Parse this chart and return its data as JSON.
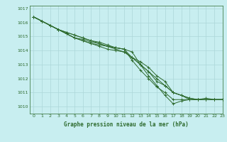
{
  "title": "Graphe pression niveau de la mer (hPa)",
  "bg_color": "#c8eef0",
  "grid_color": "#acd6d8",
  "line_color": "#2d6a2d",
  "text_color": "#2d6a2d",
  "xlim": [
    -0.5,
    23
  ],
  "ylim": [
    1009.5,
    1017.2
  ],
  "yticks": [
    1010,
    1011,
    1012,
    1013,
    1014,
    1015,
    1016,
    1017
  ],
  "xticks": [
    0,
    1,
    2,
    3,
    4,
    5,
    6,
    7,
    8,
    9,
    10,
    11,
    12,
    13,
    14,
    15,
    16,
    17,
    18,
    19,
    20,
    21,
    22,
    23
  ],
  "series": [
    [
      1016.4,
      1016.1,
      1015.8,
      1015.5,
      1015.3,
      1015.1,
      1014.9,
      1014.7,
      1014.6,
      1014.4,
      1014.2,
      1014.1,
      1013.9,
      1013.0,
      1012.2,
      1011.5,
      1010.8,
      1010.2,
      1010.4,
      1010.5,
      1010.5,
      1010.6,
      1010.5,
      1010.5
    ],
    [
      1016.4,
      1016.1,
      1015.8,
      1015.5,
      1015.3,
      1015.1,
      1014.9,
      1014.7,
      1014.5,
      1014.3,
      1014.1,
      1013.9,
      1013.5,
      1013.0,
      1012.5,
      1012.0,
      1011.5,
      1011.0,
      1010.8,
      1010.6,
      1010.5,
      1010.5,
      1010.5,
      1010.5
    ],
    [
      1016.4,
      1016.1,
      1015.8,
      1015.5,
      1015.2,
      1014.9,
      1014.7,
      1014.5,
      1014.4,
      1014.3,
      1014.2,
      1014.1,
      1013.3,
      1012.6,
      1012.0,
      1011.4,
      1011.0,
      1010.5,
      1010.5,
      1010.5,
      1010.5,
      1010.5,
      1010.5,
      1010.5
    ],
    [
      1016.4,
      1016.1,
      1015.8,
      1015.5,
      1015.2,
      1014.9,
      1014.8,
      1014.6,
      1014.5,
      1014.3,
      1014.2,
      1014.1,
      1013.5,
      1013.0,
      1012.5,
      1011.8,
      1011.5,
      1011.0,
      1010.8,
      1010.6,
      1010.5,
      1010.5,
      1010.5,
      1010.5
    ],
    [
      1016.4,
      1016.1,
      1015.8,
      1015.5,
      1015.2,
      1014.9,
      1014.7,
      1014.5,
      1014.3,
      1014.1,
      1014.0,
      1013.9,
      1013.5,
      1013.2,
      1012.8,
      1012.2,
      1011.8,
      1011.0,
      1010.8,
      1010.5,
      1010.5,
      1010.5,
      1010.5,
      1010.5
    ]
  ]
}
